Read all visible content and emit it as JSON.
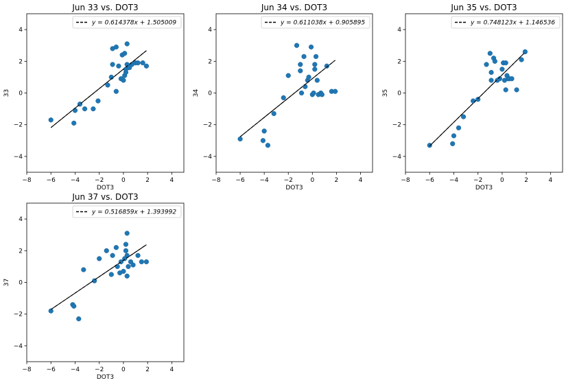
{
  "chart_data": [
    {
      "type": "scatter",
      "title": "Jun 33 vs. DOT3",
      "xlabel": "DOT3",
      "ylabel": "33",
      "xlim": [
        -8,
        5
      ],
      "ylim": [
        -5,
        5
      ],
      "xticks": [
        -8,
        -6,
        -4,
        -2,
        0,
        2,
        4
      ],
      "yticks": [
        -4,
        -2,
        0,
        2,
        4
      ],
      "legend": "top-right",
      "legend_label": "y = 0.614378x + 1.505009",
      "fit": {
        "slope": 0.614378,
        "intercept": 1.505009,
        "x_range": [
          -6,
          1.9
        ]
      },
      "point_color": "#1f77b4",
      "points": [
        [
          -6.0,
          -1.7
        ],
        [
          -4.1,
          -1.9
        ],
        [
          -4.0,
          -1.1
        ],
        [
          -3.6,
          -0.7
        ],
        [
          -3.2,
          -1.0
        ],
        [
          -2.5,
          -1.0
        ],
        [
          -2.1,
          -0.5
        ],
        [
          -1.3,
          0.5
        ],
        [
          -1.0,
          1.0
        ],
        [
          -0.9,
          1.8
        ],
        [
          -0.9,
          2.8
        ],
        [
          -0.6,
          2.9
        ],
        [
          -0.6,
          0.1
        ],
        [
          -0.4,
          1.7
        ],
        [
          -0.2,
          0.9
        ],
        [
          -0.1,
          2.4
        ],
        [
          0.0,
          0.8
        ],
        [
          0.1,
          1.1
        ],
        [
          0.1,
          2.5
        ],
        [
          0.2,
          1.3
        ],
        [
          0.2,
          1.5
        ],
        [
          0.3,
          3.1
        ],
        [
          0.3,
          1.8
        ],
        [
          0.4,
          1.6
        ],
        [
          0.5,
          1.6
        ],
        [
          0.7,
          1.8
        ],
        [
          1.0,
          1.9
        ],
        [
          1.2,
          1.9
        ],
        [
          1.6,
          1.9
        ],
        [
          1.9,
          1.7
        ]
      ]
    },
    {
      "type": "scatter",
      "title": "Jun 34 vs. DOT3",
      "xlabel": "DOT3",
      "ylabel": "34",
      "xlim": [
        -8,
        5
      ],
      "ylim": [
        -5,
        5
      ],
      "xticks": [
        -8,
        -6,
        -4,
        -2,
        0,
        2,
        4
      ],
      "yticks": [
        -4,
        -2,
        0,
        2,
        4
      ],
      "legend": "top-right",
      "legend_label": "y = 0.611038x + 0.905895",
      "fit": {
        "slope": 0.611038,
        "intercept": 0.905895,
        "x_range": [
          -6,
          1.9
        ]
      },
      "point_color": "#1f77b4",
      "points": [
        [
          -6.0,
          -2.9
        ],
        [
          -4.1,
          -3.0
        ],
        [
          -4.0,
          -2.4
        ],
        [
          -3.7,
          -3.3
        ],
        [
          -3.2,
          -1.3
        ],
        [
          -2.4,
          -0.3
        ],
        [
          -2.0,
          1.1
        ],
        [
          -1.3,
          3.0
        ],
        [
          -1.0,
          1.8
        ],
        [
          -1.0,
          1.4
        ],
        [
          -0.9,
          0.0
        ],
        [
          -0.7,
          2.3
        ],
        [
          -0.6,
          0.4
        ],
        [
          -0.4,
          0.8
        ],
        [
          -0.3,
          1.0
        ],
        [
          -0.1,
          2.9
        ],
        [
          0.0,
          -0.1
        ],
        [
          0.1,
          0.0
        ],
        [
          0.2,
          1.5
        ],
        [
          0.2,
          1.8
        ],
        [
          0.3,
          2.3
        ],
        [
          0.4,
          0.8
        ],
        [
          0.5,
          -0.1
        ],
        [
          0.7,
          0.0
        ],
        [
          0.8,
          -0.1
        ],
        [
          1.2,
          1.7
        ],
        [
          1.6,
          0.1
        ],
        [
          1.9,
          0.1
        ]
      ]
    },
    {
      "type": "scatter",
      "title": "Jun 35 vs. DOT3",
      "xlabel": "DOT3",
      "ylabel": "35",
      "xlim": [
        -8,
        5
      ],
      "ylim": [
        -5,
        5
      ],
      "xticks": [
        -8,
        -6,
        -4,
        -2,
        0,
        2,
        4
      ],
      "yticks": [
        -4,
        -2,
        0,
        2,
        4
      ],
      "legend": "top-right",
      "legend_label": "y = 0.748123x + 1.146536",
      "fit": {
        "slope": 0.748123,
        "intercept": 1.146536,
        "x_range": [
          -6,
          1.9
        ]
      },
      "point_color": "#1f77b4",
      "points": [
        [
          -6.0,
          -3.3
        ],
        [
          -4.1,
          -3.2
        ],
        [
          -4.0,
          -2.7
        ],
        [
          -3.6,
          -2.2
        ],
        [
          -3.2,
          -1.5
        ],
        [
          -2.4,
          -0.5
        ],
        [
          -2.0,
          -0.4
        ],
        [
          -1.3,
          1.8
        ],
        [
          -1.0,
          2.5
        ],
        [
          -0.9,
          1.3
        ],
        [
          -0.9,
          0.8
        ],
        [
          -0.7,
          2.2
        ],
        [
          -0.6,
          2.0
        ],
        [
          -0.4,
          0.8
        ],
        [
          -0.2,
          0.9
        ],
        [
          0.0,
          1.5
        ],
        [
          0.1,
          1.9
        ],
        [
          0.2,
          0.8
        ],
        [
          0.3,
          1.9
        ],
        [
          0.3,
          0.2
        ],
        [
          0.4,
          1.1
        ],
        [
          0.5,
          0.9
        ],
        [
          0.6,
          0.9
        ],
        [
          0.8,
          0.9
        ],
        [
          1.2,
          0.2
        ],
        [
          1.6,
          2.1
        ],
        [
          1.9,
          2.6
        ]
      ]
    },
    {
      "type": "scatter",
      "title": "Jun 37 vs. DOT3",
      "xlabel": "DOT3",
      "ylabel": "37",
      "xlim": [
        -8,
        5
      ],
      "ylim": [
        -5,
        5
      ],
      "xticks": [
        -8,
        -6,
        -4,
        -2,
        0,
        2,
        4
      ],
      "yticks": [
        -4,
        -2,
        0,
        2,
        4
      ],
      "legend": "top-right",
      "legend_label": "y = 0.516859x + 1.393992",
      "fit": {
        "slope": 0.516859,
        "intercept": 1.393992,
        "x_range": [
          -6,
          1.9
        ]
      },
      "point_color": "#1f77b4",
      "points": [
        [
          -6.0,
          -1.8
        ],
        [
          -4.2,
          -1.4
        ],
        [
          -4.1,
          -1.5
        ],
        [
          -3.7,
          -2.3
        ],
        [
          -3.3,
          0.8
        ],
        [
          -2.4,
          0.1
        ],
        [
          -2.0,
          1.5
        ],
        [
          -1.4,
          2.0
        ],
        [
          -1.0,
          0.5
        ],
        [
          -0.9,
          1.7
        ],
        [
          -0.6,
          2.2
        ],
        [
          -0.5,
          1.0
        ],
        [
          -0.3,
          0.6
        ],
        [
          -0.2,
          1.3
        ],
        [
          0.0,
          0.7
        ],
        [
          0.1,
          1.5
        ],
        [
          0.2,
          2.4
        ],
        [
          0.2,
          2.0
        ],
        [
          0.3,
          1.7
        ],
        [
          0.3,
          0.4
        ],
        [
          0.4,
          1.0
        ],
        [
          0.6,
          1.3
        ],
        [
          0.8,
          1.1
        ],
        [
          1.2,
          1.7
        ],
        [
          1.5,
          1.3
        ],
        [
          1.9,
          1.3
        ],
        [
          0.3,
          3.1
        ]
      ]
    }
  ]
}
